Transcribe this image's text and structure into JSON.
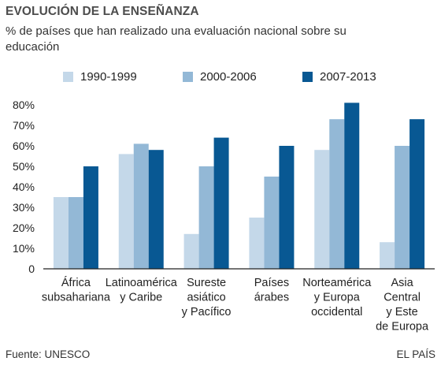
{
  "title": "EVOLUCIÓN DE LA ENSEÑANZA",
  "subtitle": "% de países que han realizado una evaluación nacional sobre su educación",
  "source": "Fuente: UNESCO",
  "brand": "EL PAÍS",
  "colors": {
    "s1": "#c4d8e9",
    "s2": "#93b8d6",
    "s3": "#085893"
  },
  "chart_data": {
    "type": "bar",
    "categories": [
      [
        "África",
        "subsahariana"
      ],
      [
        "Latinoamérica",
        "y Caribe"
      ],
      [
        "Sureste",
        "asiático",
        "y Pacífico"
      ],
      [
        "Países",
        "árabes"
      ],
      [
        "Norteamérica",
        "y Europa",
        "occidental"
      ],
      [
        "Asia",
        "Central",
        "y Este",
        "de Europa"
      ]
    ],
    "series": [
      {
        "name": "1990-1999",
        "values": [
          35,
          56,
          17,
          25,
          58,
          13
        ]
      },
      {
        "name": "2000-2006",
        "values": [
          35,
          61,
          50,
          45,
          73,
          60
        ]
      },
      {
        "name": "2007-2013",
        "values": [
          50,
          58,
          64,
          60,
          81,
          73
        ]
      }
    ],
    "ylim": [
      0,
      80
    ],
    "yticks": [
      0,
      10,
      20,
      30,
      40,
      50,
      60,
      70,
      80
    ],
    "ytick_labels": [
      "0",
      "10%",
      "20%",
      "30%",
      "40%",
      "50%",
      "60%",
      "70%",
      "80%"
    ],
    "grid": false,
    "legend_position": "top"
  }
}
